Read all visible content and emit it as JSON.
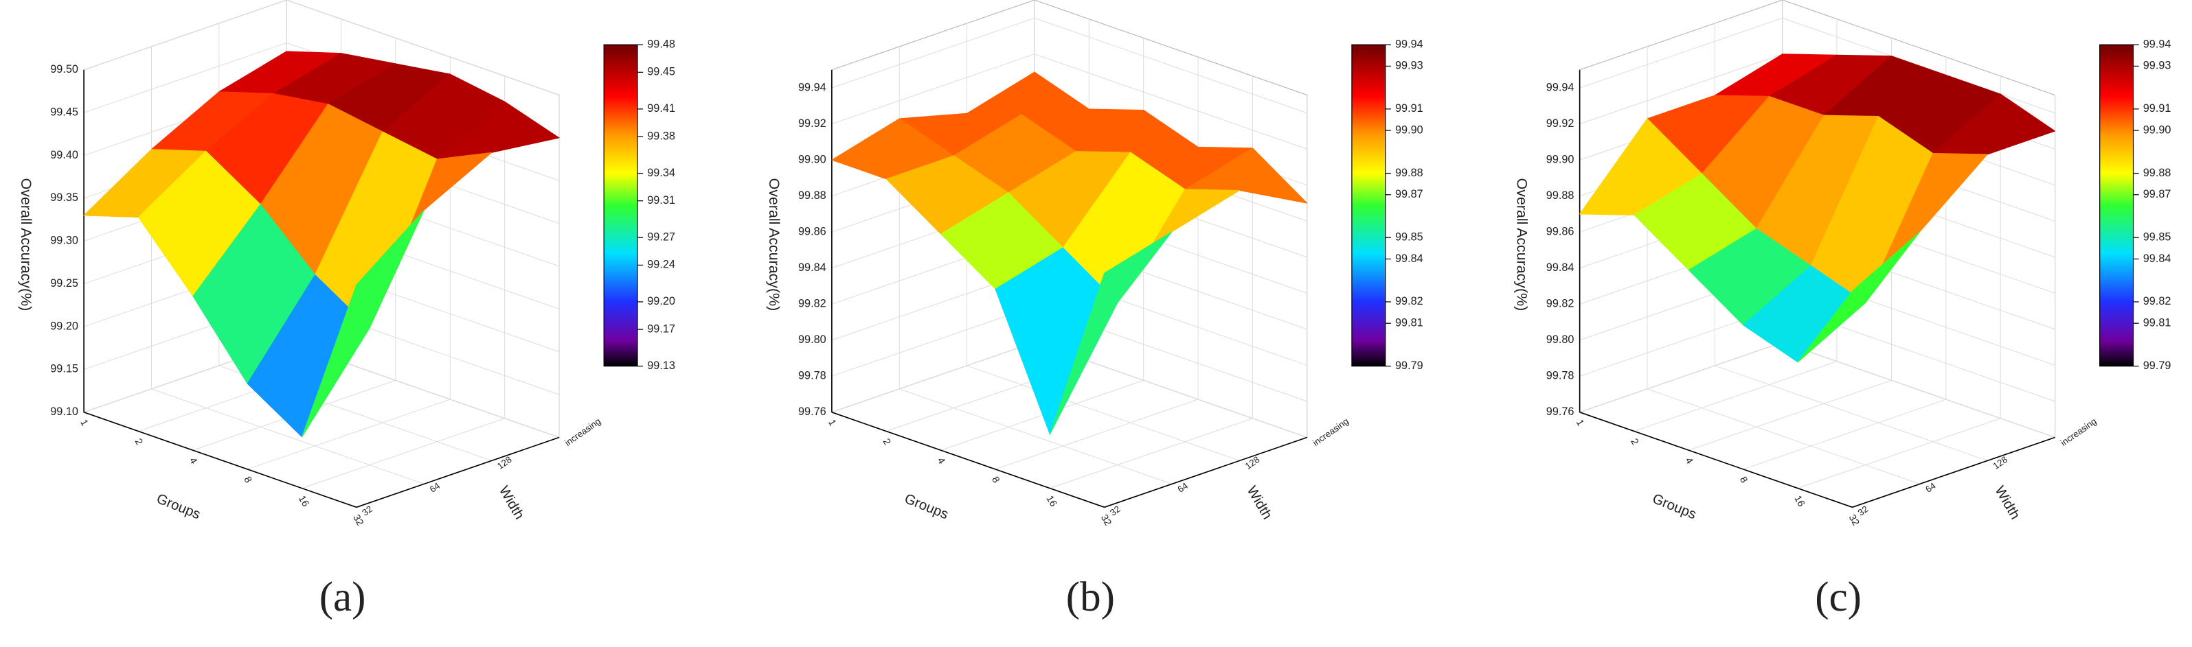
{
  "chart_data": [
    {
      "type": "surface",
      "label": "(a)",
      "zlabel": "Overall Accuracy(%)",
      "xlabel": "Groups",
      "ylabel": "Width",
      "x_categories": [
        "1",
        "2",
        "4",
        "8",
        "16",
        "32"
      ],
      "y_categories": [
        "32",
        "64",
        "128",
        "increasing"
      ],
      "z": [
        [
          99.33,
          99.35,
          99.28,
          99.2,
          99.16,
          99.36
        ],
        [
          99.38,
          99.4,
          99.36,
          99.3,
          99.26,
          99.42
        ],
        [
          99.42,
          99.44,
          99.45,
          99.44,
          99.43,
          99.46
        ],
        [
          99.44,
          99.46,
          99.47,
          99.48,
          99.47,
          99.45
        ]
      ],
      "zlim": [
        99.1,
        99.5
      ],
      "zticks": [
        {
          "value": 99.1,
          "label": "99.10"
        },
        99.15,
        {
          "value": 99.2,
          "label": "99.20"
        },
        99.25,
        {
          "value": 99.3,
          "label": "99.30"
        },
        99.35,
        {
          "value": 99.4,
          "label": "99.40"
        },
        99.45,
        {
          "value": 99.5,
          "label": "99.50"
        }
      ],
      "colorbar_ticks": [
        99.13,
        99.17,
        {
          "value": 99.2,
          "label": "99.20"
        },
        99.24,
        99.27,
        99.31,
        99.34,
        99.38,
        99.41,
        99.45,
        99.48
      ]
    },
    {
      "type": "surface",
      "label": "(b)",
      "zlabel": "Overall Accuracy(%)",
      "xlabel": "Groups",
      "ylabel": "Width",
      "x_categories": [
        "1",
        "2",
        "4",
        "8",
        "16",
        "32"
      ],
      "y_categories": [
        "32",
        "64",
        "128",
        "increasing"
      ],
      "z": [
        [
          99.9,
          99.9,
          99.88,
          99.86,
          99.79,
          99.89
        ],
        [
          99.91,
          99.9,
          99.89,
          99.87,
          99.85,
          99.9
        ],
        [
          99.9,
          99.91,
          99.9,
          99.91,
          99.9,
          99.91
        ],
        [
          99.91,
          99.9,
          99.91,
          99.9,
          99.91,
          99.89
        ]
      ],
      "zlim": [
        99.76,
        99.95
      ],
      "zticks": [
        99.76,
        99.78,
        {
          "value": 99.8,
          "label": "99.80"
        },
        99.82,
        99.84,
        99.86,
        99.88,
        {
          "value": 99.9,
          "label": "99.90"
        },
        99.92,
        99.94
      ],
      "colorbar_ticks": [
        99.79,
        99.81,
        99.82,
        99.84,
        99.85,
        99.87,
        99.88,
        {
          "value": 99.9,
          "label": "99.90"
        },
        99.91,
        99.93,
        99.94
      ]
    },
    {
      "type": "surface",
      "label": "(c)",
      "zlabel": "Overall Accuracy(%)",
      "xlabel": "Groups",
      "ylabel": "Width",
      "x_categories": [
        "1",
        "2",
        "4",
        "8",
        "16",
        "32"
      ],
      "y_categories": [
        "32",
        "64",
        "128",
        "increasing"
      ],
      "z": [
        [
          99.87,
          99.88,
          99.86,
          99.84,
          99.83,
          99.88
        ],
        [
          99.91,
          99.89,
          99.87,
          99.86,
          99.85,
          99.9
        ],
        [
          99.91,
          99.92,
          99.92,
          99.93,
          99.92,
          99.93
        ],
        [
          99.92,
          99.93,
          99.94,
          99.94,
          99.94,
          99.93
        ]
      ],
      "zlim": [
        99.76,
        99.95
      ],
      "zticks": [
        99.76,
        99.78,
        {
          "value": 99.8,
          "label": "99.80"
        },
        99.82,
        99.84,
        99.86,
        99.88,
        {
          "value": 99.9,
          "label": "99.90"
        },
        99.92,
        99.94
      ],
      "colorbar_ticks": [
        99.79,
        99.81,
        99.82,
        99.84,
        99.85,
        99.87,
        99.88,
        {
          "value": 99.9,
          "label": "99.90"
        },
        99.91,
        99.93,
        99.94
      ]
    }
  ]
}
